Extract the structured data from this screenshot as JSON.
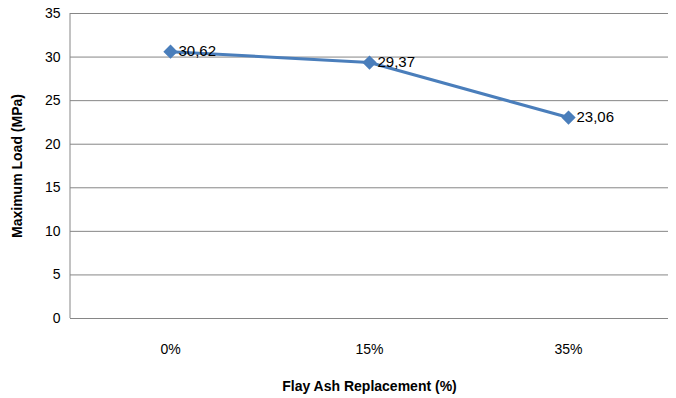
{
  "chart_data": {
    "type": "line",
    "x_label": "Flay Ash Replacement (%)",
    "y_label": "Maximum Load (MPa)",
    "categories": [
      "0%",
      "15%",
      "35%"
    ],
    "values": [
      30.62,
      29.37,
      23.06
    ],
    "value_labels": [
      "30,62",
      "29,37",
      "23,06"
    ],
    "data_labels": true,
    "color": "#4a7ebb",
    "marker": "diamond",
    "ylim": [
      0,
      35
    ],
    "yticks": [
      0,
      5,
      10,
      15,
      20,
      25,
      30,
      35
    ],
    "grid": true
  }
}
